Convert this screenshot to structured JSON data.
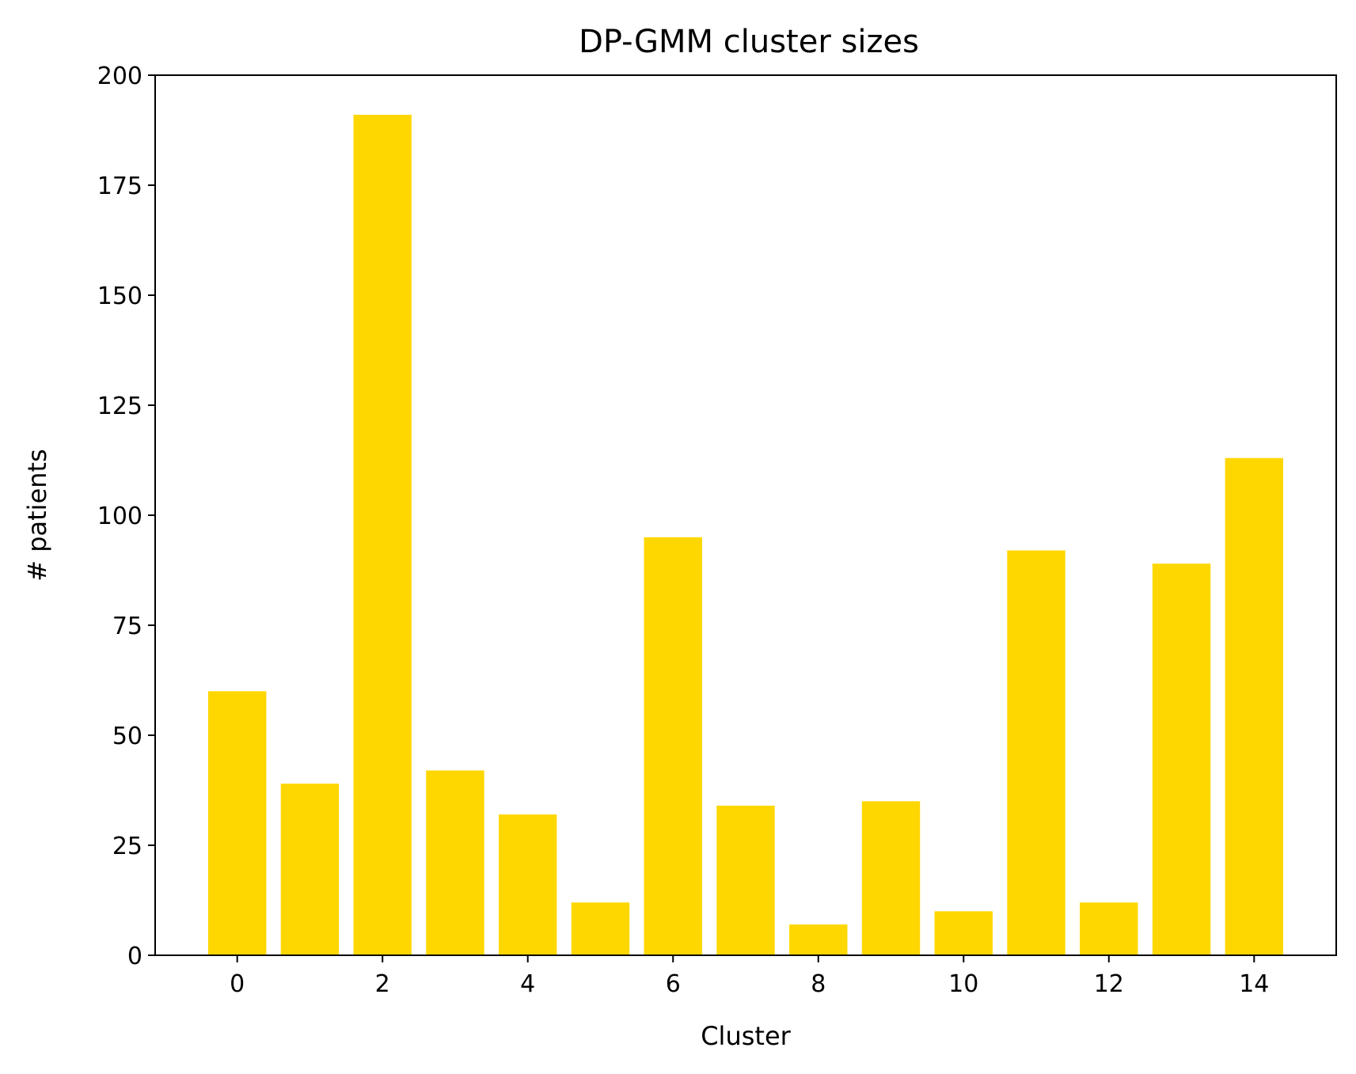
{
  "chart_data": {
    "type": "bar",
    "title": "DP-GMM cluster sizes",
    "xlabel": "Cluster",
    "ylabel": "# patients",
    "categories": [
      0,
      1,
      2,
      3,
      4,
      5,
      6,
      7,
      8,
      9,
      10,
      11,
      12,
      13,
      14
    ],
    "values": [
      60,
      39,
      191,
      42,
      32,
      12,
      95,
      34,
      7,
      35,
      10,
      92,
      12,
      89,
      113
    ],
    "x_ticks": [
      0,
      2,
      4,
      6,
      8,
      10,
      12,
      14
    ],
    "y_ticks": [
      0,
      25,
      50,
      75,
      100,
      125,
      150,
      175,
      200
    ],
    "xlim": [
      -1.13,
      15.13
    ],
    "ylim": [
      0,
      200
    ],
    "bar_color": "#FFD700",
    "grid": false,
    "legend": "none"
  }
}
